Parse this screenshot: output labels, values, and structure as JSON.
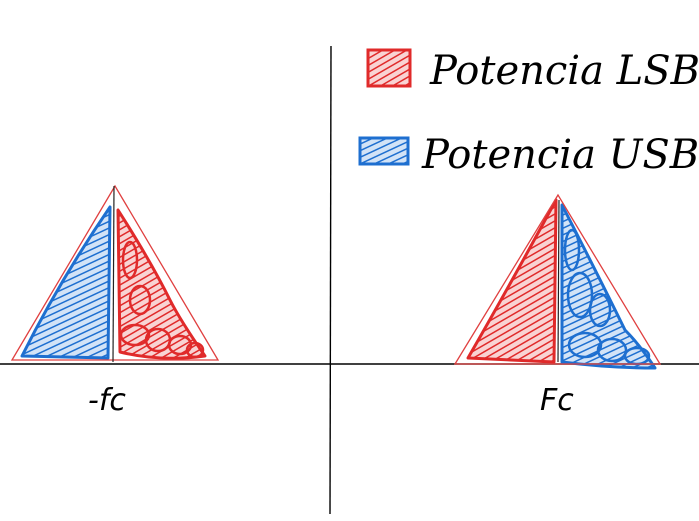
{
  "legend": {
    "items": [
      {
        "label": "Potencia LSB",
        "color": "#e02a2a"
      },
      {
        "label": "Potencia USB",
        "color": "#1e6fd0"
      }
    ]
  },
  "axis_labels": {
    "neg_fc": "-fc",
    "pos_fc": "Fc"
  },
  "colors": {
    "lsb": "#e02a2a",
    "usb": "#1e6fd0",
    "outline": "#e04040",
    "axis": "#000000"
  }
}
